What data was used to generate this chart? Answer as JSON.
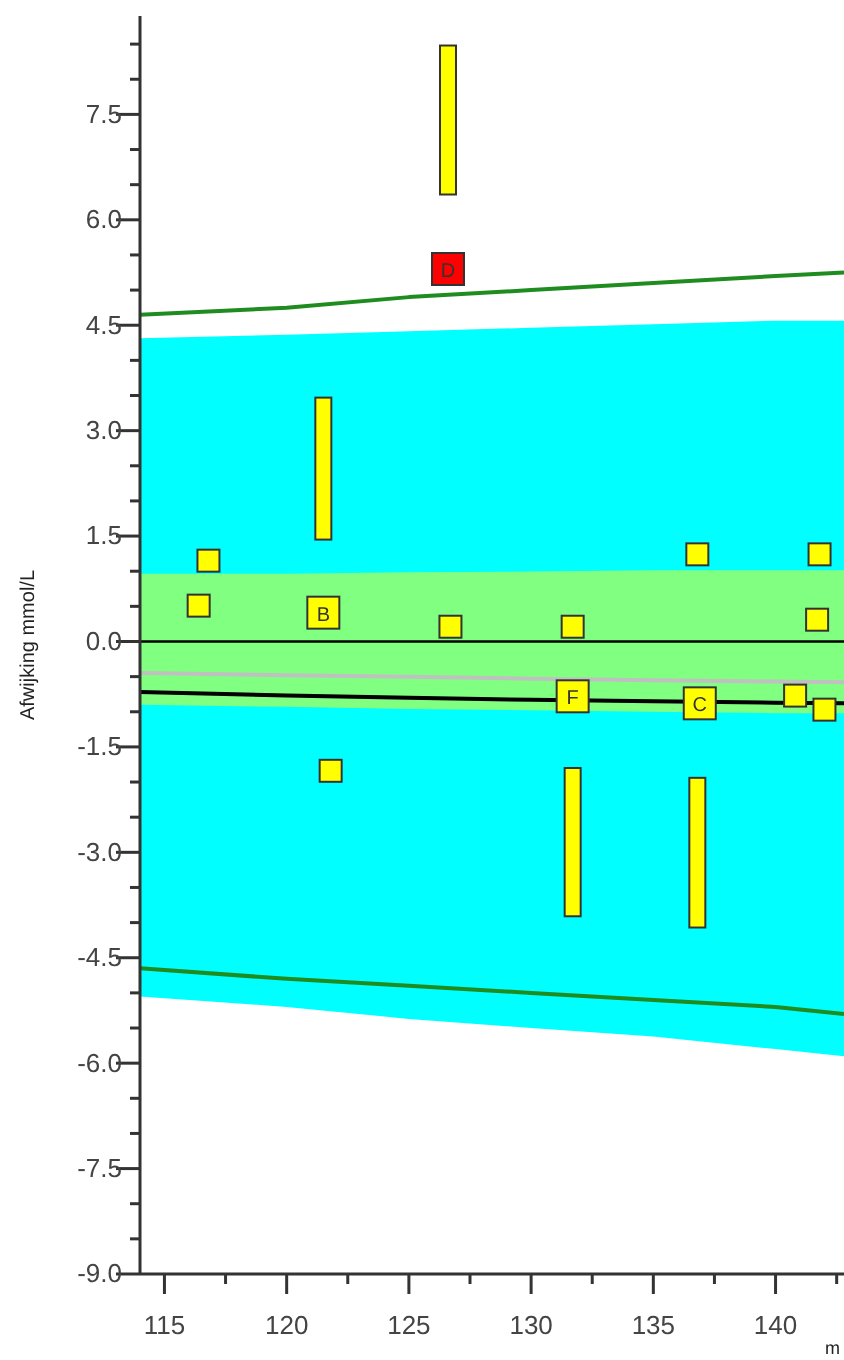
{
  "chart_data": {
    "type": "line",
    "ylabel": "Afwijking mmol/L",
    "xlabel": "m",
    "xlim": [
      114,
      142.8
    ],
    "ylim": [
      -9,
      8.9
    ],
    "xticks": [
      115,
      {
        "value": 117.5,
        "label": null
      },
      120,
      {
        "value": 122.5,
        "label": null
      },
      125,
      {
        "value": 127.5,
        "label": null
      },
      130,
      {
        "value": 132.5,
        "label": null
      },
      135,
      {
        "value": 137.5,
        "label": null
      },
      140,
      {
        "value": 142.5,
        "label": null
      }
    ],
    "yticks": [
      {
        "value": -9,
        "label": "-9.0"
      },
      {
        "value": -8.5,
        "label": null
      },
      {
        "value": -8,
        "label": null
      },
      -7.5,
      {
        "value": -7,
        "label": null
      },
      {
        "value": -6.5,
        "label": null
      },
      {
        "value": -6,
        "label": "-6.0"
      },
      {
        "value": -5.5,
        "label": null
      },
      {
        "value": -5,
        "label": null
      },
      -4.5,
      {
        "value": -4,
        "label": null
      },
      {
        "value": -3.5,
        "label": null
      },
      {
        "value": -3,
        "label": "-3.0"
      },
      {
        "value": -2.5,
        "label": null
      },
      {
        "value": -2,
        "label": null
      },
      -1.5,
      {
        "value": -1,
        "label": null
      },
      {
        "value": -0.5,
        "label": null
      },
      {
        "value": 0,
        "label": "0.0"
      },
      {
        "value": 0.5,
        "label": null
      },
      {
        "value": 1,
        "label": null
      },
      1.5,
      {
        "value": 2,
        "label": null
      },
      {
        "value": 2.5,
        "label": null
      },
      {
        "value": 3,
        "label": "3.0"
      },
      {
        "value": 3.5,
        "label": null
      },
      {
        "value": 4,
        "label": null
      },
      4.5,
      {
        "value": 5,
        "label": null
      },
      {
        "value": 5.5,
        "label": null
      },
      {
        "value": 6,
        "label": "6.0"
      },
      {
        "value": 6.5,
        "label": null
      },
      {
        "value": 7,
        "label": null
      },
      7.5,
      {
        "value": 8,
        "label": null
      },
      {
        "value": 8.5,
        "label": null
      }
    ],
    "grid": false,
    "x": [
      114,
      120,
      125,
      130,
      135,
      140,
      142.8
    ],
    "ref_lines": [
      {
        "axis": "y",
        "value": 0,
        "color": "#000000"
      }
    ],
    "series": [
      {
        "color": "#00ffff",
        "values": [
          4.3,
          4.35,
          4.4,
          4.45,
          4.5,
          4.55,
          4.55
        ],
        "upper": [
          4.3,
          4.35,
          4.4,
          4.45,
          4.5,
          4.55,
          4.55
        ],
        "lower": [
          -5.05,
          -5.2,
          -5.37,
          -5.5,
          -5.62,
          -5.8,
          -5.9
        ]
      },
      {
        "color": "#1f8c1f",
        "values": [
          4.65,
          4.75,
          4.9,
          5.0,
          5.1,
          5.2,
          5.25
        ]
      },
      {
        "color": "#1f8c1f",
        "values": [
          -4.65,
          -4.8,
          -4.9,
          -5.0,
          -5.1,
          -5.2,
          -5.3
        ]
      },
      {
        "color": "#80ff80",
        "values": [
          0.95,
          0.95,
          0.97,
          0.98,
          1.0,
          1.0,
          1.0
        ],
        "upper": [
          0.95,
          0.95,
          0.97,
          0.98,
          1.0,
          1.0,
          1.0
        ],
        "lower": [
          -0.9,
          -0.93,
          -0.96,
          -0.98,
          -1.0,
          -1.02,
          -1.02
        ]
      },
      {
        "color": "#c0c0c0",
        "values": [
          -0.45,
          -0.48,
          -0.5,
          -0.53,
          -0.55,
          -0.57,
          -0.58
        ]
      },
      {
        "color": "#000000",
        "values": [
          -0.72,
          -0.77,
          -0.8,
          -0.83,
          -0.85,
          -0.87,
          -0.88
        ]
      },
      {
        "type": "bar",
        "color": "#ffff00",
        "x": [
          121.5,
          126.6,
          131.7,
          136.8
        ],
        "base": [
          1.45,
          6.36,
          -3.91,
          -4.07
        ],
        "values": [
          2.02,
          2.12,
          2.11,
          2.13
        ]
      },
      {
        "type": "scatter",
        "marker": "square",
        "color": "#ffff00",
        "x": [
          116.8,
          116.4,
          126.7,
          131.7,
          136.8,
          141.8,
          141.7,
          140.8,
          142.0,
          121.8
        ],
        "values": [
          1.15,
          0.51,
          0.21,
          0.21,
          1.24,
          1.24,
          0.31,
          -0.77,
          -0.97,
          -1.84
        ]
      },
      {
        "type": "scatter",
        "marker": "square",
        "colors": [
          "#ffff00",
          "#ff0000",
          "#ffff00",
          "#ffff00"
        ],
        "x": [
          121.5,
          126.6,
          131.7,
          136.9
        ],
        "values": [
          0.41,
          5.3,
          -0.78,
          -0.88
        ],
        "value_labels": [
          "B",
          "D",
          "F",
          "C"
        ]
      }
    ]
  }
}
